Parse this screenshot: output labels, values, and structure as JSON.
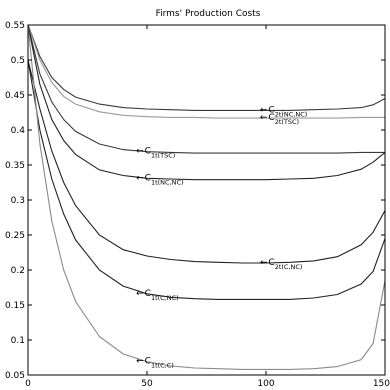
{
  "chart_data": {
    "type": "line",
    "title": "Firms' Production Costs",
    "xlabel": "",
    "ylabel": "",
    "xlim": [
      0,
      150
    ],
    "ylim": [
      0.05,
      0.55
    ],
    "xticks": [
      "0",
      "50",
      "100",
      "150"
    ],
    "yticks": [
      "0.05",
      "0.1",
      "0.15",
      "0.2",
      "0.25",
      "0.3",
      "0.35",
      "0.4",
      "0.45",
      "0.5",
      "0.55"
    ],
    "grid": false,
    "series": [
      {
        "name": "C2t(NC,NC)",
        "color": "#3a3a3a",
        "x": [
          0,
          5,
          10,
          15,
          20,
          30,
          40,
          50,
          60,
          70,
          80,
          90,
          100,
          110,
          120,
          130,
          140,
          145,
          150
        ],
        "y": [
          0.55,
          0.505,
          0.475,
          0.458,
          0.447,
          0.437,
          0.432,
          0.43,
          0.429,
          0.428,
          0.428,
          0.428,
          0.428,
          0.428,
          0.429,
          0.43,
          0.432,
          0.436,
          0.445
        ]
      },
      {
        "name": "C2t(TSC)",
        "color": "#9a9a9a",
        "x": [
          0,
          5,
          10,
          15,
          20,
          30,
          40,
          50,
          60,
          70,
          80,
          90,
          100,
          110,
          120,
          130,
          140,
          150
        ],
        "y": [
          0.55,
          0.5,
          0.468,
          0.448,
          0.437,
          0.426,
          0.421,
          0.419,
          0.418,
          0.418,
          0.417,
          0.417,
          0.417,
          0.417,
          0.417,
          0.417,
          0.418,
          0.418
        ]
      },
      {
        "name": "C1t(TSC)",
        "color": "#3a3a3a",
        "x": [
          0,
          5,
          10,
          15,
          20,
          30,
          40,
          50,
          60,
          70,
          80,
          90,
          100,
          110,
          120,
          130,
          140,
          150
        ],
        "y": [
          0.55,
          0.48,
          0.44,
          0.415,
          0.398,
          0.38,
          0.372,
          0.369,
          0.368,
          0.367,
          0.367,
          0.367,
          0.367,
          0.367,
          0.367,
          0.367,
          0.368,
          0.368
        ]
      },
      {
        "name": "C1t(NC,NC)",
        "color": "#222222",
        "x": [
          0,
          5,
          10,
          15,
          20,
          30,
          40,
          50,
          60,
          70,
          80,
          90,
          100,
          110,
          120,
          130,
          140,
          145,
          150
        ],
        "y": [
          0.55,
          0.465,
          0.415,
          0.385,
          0.365,
          0.343,
          0.335,
          0.331,
          0.33,
          0.329,
          0.329,
          0.329,
          0.329,
          0.33,
          0.331,
          0.335,
          0.344,
          0.354,
          0.368
        ]
      },
      {
        "name": "C2t(C,NC)",
        "color": "#222222",
        "x": [
          0,
          5,
          10,
          15,
          20,
          30,
          40,
          50,
          60,
          70,
          80,
          90,
          100,
          110,
          120,
          130,
          140,
          145,
          150
        ],
        "y": [
          0.5,
          0.43,
          0.37,
          0.325,
          0.292,
          0.25,
          0.229,
          0.22,
          0.215,
          0.212,
          0.211,
          0.21,
          0.21,
          0.211,
          0.213,
          0.219,
          0.236,
          0.254,
          0.285
        ]
      },
      {
        "name": "C1t(C,NC)",
        "color": "#222222",
        "x": [
          0,
          5,
          10,
          15,
          20,
          30,
          40,
          50,
          60,
          70,
          80,
          90,
          100,
          110,
          120,
          130,
          140,
          145,
          150
        ],
        "y": [
          0.5,
          0.4,
          0.33,
          0.28,
          0.243,
          0.2,
          0.177,
          0.166,
          0.161,
          0.159,
          0.158,
          0.158,
          0.158,
          0.158,
          0.16,
          0.165,
          0.18,
          0.198,
          0.245
        ]
      },
      {
        "name": "C1t(C,C)",
        "color": "#8a8a8a",
        "x": [
          0,
          5,
          10,
          15,
          20,
          30,
          40,
          50,
          60,
          70,
          80,
          90,
          100,
          110,
          120,
          130,
          140,
          145,
          150
        ],
        "y": [
          0.55,
          0.38,
          0.27,
          0.2,
          0.155,
          0.105,
          0.08,
          0.069,
          0.063,
          0.06,
          0.059,
          0.058,
          0.058,
          0.058,
          0.059,
          0.062,
          0.072,
          0.095,
          0.185
        ]
      }
    ],
    "annotations": [
      {
        "series": "C2t(NC,NC)",
        "arrow": "←",
        "main": "C",
        "sub": "2t(NC,NC)",
        "x": 97,
        "y": 0.428
      },
      {
        "series": "C2t(TSC)",
        "arrow": "←",
        "main": "C",
        "sub": "2t(TSC)",
        "x": 97,
        "y": 0.417
      },
      {
        "series": "C1t(TSC)",
        "arrow": "←",
        "main": "C",
        "sub": "1t(TSC)",
        "x": 45,
        "y": 0.369
      },
      {
        "series": "C1t(NC,NC)",
        "arrow": "←",
        "main": "C",
        "sub": "1t(NC,NC)",
        "x": 45,
        "y": 0.331
      },
      {
        "series": "C2t(C,NC)",
        "arrow": "←",
        "main": "C",
        "sub": "2t(C,NC)",
        "x": 97,
        "y": 0.21
      },
      {
        "series": "C1t(C,NC)",
        "arrow": "←",
        "main": "C",
        "sub": "1t(C,NC)",
        "x": 45,
        "y": 0.166
      },
      {
        "series": "C1t(C,C)",
        "arrow": "←",
        "main": "C",
        "sub": "1t(C,C)",
        "x": 45,
        "y": 0.069
      }
    ]
  }
}
